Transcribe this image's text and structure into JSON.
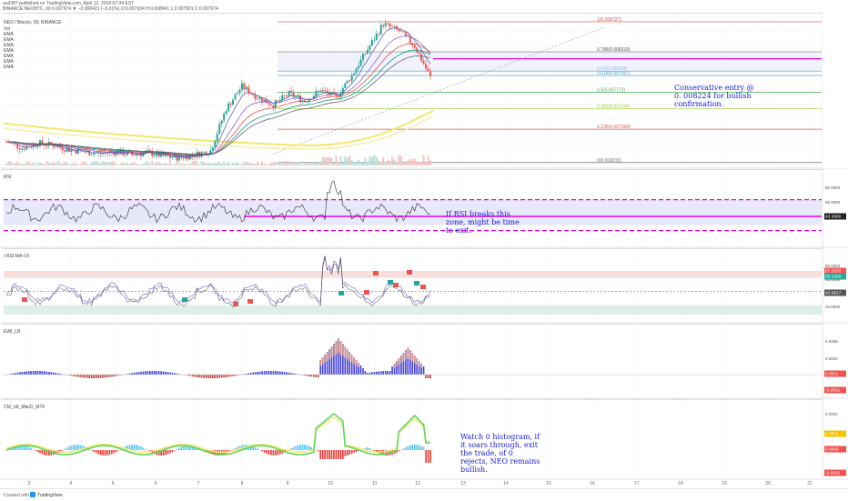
{
  "header": {
    "line1": "aud387 published on TradingView.com, April 12, 2018 07:34 EST",
    "line2": "BINANCE:NEOBTC, 60  0.007974 ▼ −0.000421 (−5.01%)  O:0.007934  H:0.008041  L:0.007901  C:0.007974"
  },
  "colors": {
    "up": "#26a69a",
    "down": "#ef5350",
    "magenta": "#e600e6",
    "annotation": "#1a1ad6",
    "pane_fill": "#e8e8fb",
    "rsi": "#2b2b2b"
  },
  "price_pane": {
    "title": "NEO / Bitcoin, 60, BINANCE",
    "indicator_labels": [
      "Vol",
      "EMA",
      "EMA",
      "EMA",
      "EMA",
      "EMA",
      "EMA",
      "EMA"
    ],
    "fib_levels": [
      {
        "label": "1(0.008727)",
        "value": 0.008727,
        "color": "#e05050"
      },
      {
        "label": "0.786(0.008318)",
        "value": 0.008318,
        "color": "#555555"
      },
      {
        "label": "0.65(0.008058)",
        "value": 0.008058,
        "color": "#3aa0c8"
      },
      {
        "label": "0.618(0.007997)",
        "value": 0.007997,
        "color": "#3aa0c8"
      },
      {
        "label": "0.5(0.007771)",
        "value": 0.007771,
        "color": "#4caf50"
      },
      {
        "label": "0.382(0.007546)",
        "value": 0.007546,
        "color": "#9ccc3c"
      },
      {
        "label": "0.236(0.007268)",
        "value": 0.007268,
        "color": "#e05050"
      },
      {
        "label": "0(0.006815)",
        "value": 0.006815,
        "color": "#777777"
      }
    ],
    "price_axis_ticks": [
      "0.008800",
      "0.008600",
      "0.008400",
      "0.008200",
      "0.008000",
      "0.007800",
      "0.007600",
      "0.007400",
      "0.007200",
      "0.007000",
      "0.006800"
    ],
    "tags": [
      {
        "text": "0.008224",
        "color": "#e600e6"
      },
      {
        "text": "0.007974",
        "color": "#ef5350"
      },
      {
        "text": "0.007500",
        "color": "#f2c200"
      },
      {
        "text": "30.7131",
        "color": "#ef7b00"
      }
    ],
    "entry_line_value": 0.008224,
    "annotation": "Conservative entry @ 0. 008224 for bullish confirmation."
  },
  "rsi_pane": {
    "title": "RSI",
    "ticks": [
      "80.0000",
      "60.0000",
      "40.0000"
    ],
    "current": "43.3560",
    "annotation": "If RSI breaks this zone, might be time to exit."
  },
  "irsi_pane": {
    "title": "i-RSI-MA-V3",
    "ticks": [
      "80.0000",
      "60.0000",
      "40.0000",
      "20.0000"
    ],
    "tags": [
      {
        "text": "67.2537",
        "color": "#ef5350"
      },
      {
        "text": "55.5309",
        "color": "#26a69a"
      },
      {
        "text": "42.5817",
        "color": "#555555"
      }
    ]
  },
  "ewo_pane": {
    "title": "EWI_LB",
    "ticks": [
      "0.0008",
      "0.0004",
      "0.0001",
      "-0.0001"
    ],
    "tags": [
      {
        "text": "0.0001",
        "color": "#ef5350"
      },
      {
        "text": "-0.0001",
        "color": "#ef5350"
      }
    ]
  },
  "macd_pane": {
    "title": "CM_Ult_MacD_MTF",
    "ticks": [
      "0.0002",
      "0.0001",
      "-0.0001"
    ],
    "tags": [
      {
        "text": "0.0001",
        "color": "#f2c200"
      },
      {
        "text": "0.0000",
        "color": "#ef5350"
      },
      {
        "text": "-0.0001",
        "color": "#ef5350"
      }
    ],
    "annotation": "Watch 0 histogram, if it soars through, exit the trade, of 0 rejects, NEO remains bullish."
  },
  "x_axis": {
    "ticks": [
      "3",
      "4",
      "5",
      "6",
      "7",
      "8",
      "9",
      "10",
      "11",
      "12",
      "13",
      "14",
      "15",
      "16",
      "17",
      "18",
      "19",
      "20",
      "21"
    ]
  },
  "footer": {
    "created_with": "Created with",
    "brand": "TradingView"
  },
  "chart_data": {
    "type": "candlestick",
    "symbol": "NEOBTC",
    "exchange": "BINANCE",
    "interval": "60",
    "x_dates": [
      "3",
      "4",
      "5",
      "6",
      "7",
      "8",
      "9",
      "10",
      "11",
      "12"
    ],
    "close_path": [
      0.0071,
      0.00701,
      0.00708,
      0.00705,
      0.00699,
      0.00696,
      0.00694,
      0.00696,
      0.00692,
      0.00695,
      0.0069,
      0.00688,
      0.00692,
      0.00698,
      0.00755,
      0.00785,
      0.0077,
      0.0076,
      0.00775,
      0.00765,
      0.0078,
      0.0077,
      0.008,
      0.00835,
      0.0087,
      0.0086,
      0.0084,
      0.007974
    ],
    "last": {
      "open": 0.007934,
      "high": 0.008041,
      "low": 0.007901,
      "close": 0.007974,
      "change": -0.000421,
      "change_pct": -5.01
    },
    "ylim": [
      0.0068,
      0.0088
    ]
  }
}
